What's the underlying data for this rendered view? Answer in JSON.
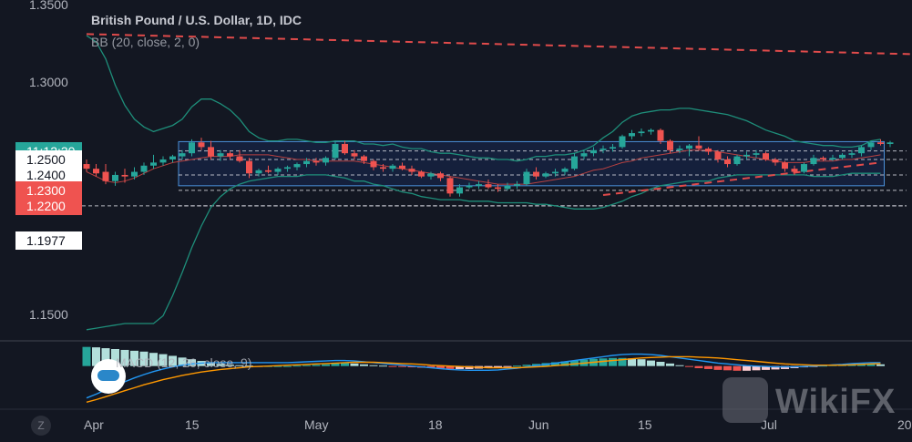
{
  "legend": {
    "title": "British Pound / U.S. Dollar, 1D, IDC",
    "bb": "BB (20, close, 2, 0)",
    "macd": "MACD (12, 26, close, 9)"
  },
  "price_tags": [
    {
      "label": "11:12:30",
      "price": 1.2555,
      "bg": "#26a69a",
      "fg": "#ffffff"
    },
    {
      "label": "1.2500",
      "price": 1.25,
      "bg": "#ffffff",
      "fg": "#131722"
    },
    {
      "label": "1.2400",
      "price": 1.24,
      "bg": "#ffffff",
      "fg": "#131722"
    },
    {
      "label": "1.2300",
      "price": 1.23,
      "bg": "#ef5350",
      "fg": "#ffffff"
    },
    {
      "label": "1.2200",
      "price": 1.22,
      "bg": "#ef5350",
      "fg": "#ffffff"
    },
    {
      "label": "1.1977",
      "price": 1.1977,
      "bg": "#ffffff",
      "fg": "#131722"
    }
  ],
  "bottom_button": "Z",
  "watermark": "WikiFX",
  "colors": {
    "background": "#131722",
    "up": "#26a69a",
    "down": "#ef5350",
    "bb_band": "#1e8e7a",
    "bb_basis": "#b74141",
    "trendline": "#e04b4b",
    "box_fill": "#2962ff",
    "box_border": "#4a90d9",
    "macd_line": "#2196f3",
    "signal_line": "#ff9800",
    "axis_text": "#b2b5be"
  },
  "chart_data": {
    "type": "candlestick",
    "title": "British Pound / U.S. Dollar, 1D, IDC",
    "y_ticks": [
      1.15,
      1.3,
      1.35
    ],
    "y_range": [
      1.134,
      1.353
    ],
    "x_ticks": [
      "Apr",
      "15",
      "May",
      "18",
      "Jun",
      "15",
      "Jul",
      "20"
    ],
    "candles": [
      [
        1.247,
        1.25,
        1.242,
        1.244
      ],
      [
        1.244,
        1.247,
        1.239,
        1.241
      ],
      [
        1.242,
        1.247,
        1.234,
        1.236
      ],
      [
        1.236,
        1.242,
        1.233,
        1.24
      ],
      [
        1.24,
        1.244,
        1.235,
        1.239
      ],
      [
        1.239,
        1.245,
        1.237,
        1.242
      ],
      [
        1.242,
        1.248,
        1.24,
        1.246
      ],
      [
        1.246,
        1.253,
        1.244,
        1.248
      ],
      [
        1.248,
        1.252,
        1.246,
        1.25
      ],
      [
        1.25,
        1.253,
        1.248,
        1.252
      ],
      [
        1.252,
        1.256,
        1.25,
        1.254
      ],
      [
        1.254,
        1.263,
        1.252,
        1.261
      ],
      [
        1.261,
        1.264,
        1.256,
        1.258
      ],
      [
        1.258,
        1.262,
        1.25,
        1.252
      ],
      [
        1.252,
        1.256,
        1.249,
        1.254
      ],
      [
        1.254,
        1.255,
        1.25,
        1.252
      ],
      [
        1.252,
        1.256,
        1.248,
        1.249
      ],
      [
        1.249,
        1.251,
        1.238,
        1.241
      ],
      [
        1.241,
        1.244,
        1.239,
        1.243
      ],
      [
        1.243,
        1.246,
        1.241,
        1.242
      ],
      [
        1.242,
        1.245,
        1.24,
        1.244
      ],
      [
        1.244,
        1.246,
        1.242,
        1.245
      ],
      [
        1.245,
        1.248,
        1.243,
        1.247
      ],
      [
        1.247,
        1.251,
        1.245,
        1.249
      ],
      [
        1.249,
        1.251,
        1.246,
        1.248
      ],
      [
        1.248,
        1.252,
        1.246,
        1.251
      ],
      [
        1.251,
        1.262,
        1.25,
        1.26
      ],
      [
        1.26,
        1.262,
        1.253,
        1.254
      ],
      [
        1.254,
        1.256,
        1.25,
        1.252
      ],
      [
        1.252,
        1.253,
        1.247,
        1.249
      ],
      [
        1.249,
        1.25,
        1.243,
        1.245
      ],
      [
        1.245,
        1.247,
        1.242,
        1.244
      ],
      [
        1.244,
        1.247,
        1.242,
        1.246
      ],
      [
        1.246,
        1.248,
        1.243,
        1.244
      ],
      [
        1.244,
        1.246,
        1.24,
        1.242
      ],
      [
        1.242,
        1.243,
        1.238,
        1.239
      ],
      [
        1.239,
        1.242,
        1.237,
        1.241
      ],
      [
        1.241,
        1.242,
        1.236,
        1.238
      ],
      [
        1.238,
        1.239,
        1.226,
        1.228
      ],
      [
        1.228,
        1.234,
        1.226,
        1.232
      ],
      [
        1.232,
        1.235,
        1.231,
        1.233
      ],
      [
        1.233,
        1.236,
        1.231,
        1.234
      ],
      [
        1.234,
        1.237,
        1.231,
        1.232
      ],
      [
        1.232,
        1.234,
        1.229,
        1.231
      ],
      [
        1.231,
        1.235,
        1.23,
        1.233
      ],
      [
        1.233,
        1.236,
        1.231,
        1.234
      ],
      [
        1.234,
        1.244,
        1.233,
        1.242
      ],
      [
        1.242,
        1.245,
        1.237,
        1.239
      ],
      [
        1.239,
        1.242,
        1.238,
        1.241
      ],
      [
        1.241,
        1.244,
        1.239,
        1.242
      ],
      [
        1.242,
        1.245,
        1.24,
        1.244
      ],
      [
        1.244,
        1.254,
        1.243,
        1.252
      ],
      [
        1.252,
        1.256,
        1.25,
        1.254
      ],
      [
        1.254,
        1.258,
        1.252,
        1.256
      ],
      [
        1.256,
        1.259,
        1.254,
        1.257
      ],
      [
        1.257,
        1.26,
        1.255,
        1.258
      ],
      [
        1.258,
        1.266,
        1.257,
        1.265
      ],
      [
        1.265,
        1.269,
        1.263,
        1.267
      ],
      [
        1.267,
        1.27,
        1.265,
        1.268
      ],
      [
        1.268,
        1.27,
        1.266,
        1.269
      ],
      [
        1.269,
        1.27,
        1.26,
        1.262
      ],
      [
        1.262,
        1.263,
        1.254,
        1.256
      ],
      [
        1.256,
        1.259,
        1.254,
        1.257
      ],
      [
        1.257,
        1.26,
        1.252,
        1.259
      ],
      [
        1.259,
        1.265,
        1.256,
        1.257
      ],
      [
        1.257,
        1.258,
        1.253,
        1.255
      ],
      [
        1.255,
        1.256,
        1.248,
        1.25
      ],
      [
        1.25,
        1.252,
        1.245,
        1.247
      ],
      [
        1.247,
        1.253,
        1.246,
        1.252
      ],
      [
        1.252,
        1.255,
        1.25,
        1.253
      ],
      [
        1.253,
        1.256,
        1.251,
        1.254
      ],
      [
        1.254,
        1.255,
        1.249,
        1.25
      ],
      [
        1.25,
        1.251,
        1.246,
        1.248
      ],
      [
        1.248,
        1.249,
        1.242,
        1.244
      ],
      [
        1.244,
        1.246,
        1.24,
        1.242
      ],
      [
        1.242,
        1.248,
        1.241,
        1.247
      ],
      [
        1.247,
        1.253,
        1.246,
        1.251
      ],
      [
        1.251,
        1.252,
        1.249,
        1.25
      ],
      [
        1.25,
        1.253,
        1.249,
        1.251
      ],
      [
        1.251,
        1.254,
        1.25,
        1.253
      ],
      [
        1.253,
        1.256,
        1.251,
        1.254
      ],
      [
        1.254,
        1.259,
        1.252,
        1.258
      ],
      [
        1.258,
        1.262,
        1.256,
        1.261
      ],
      [
        1.261,
        1.263,
        1.259,
        1.26
      ],
      [
        1.26,
        1.262,
        1.258,
        1.261
      ]
    ],
    "bb_upper": [
      1.33,
      1.326,
      1.315,
      1.298,
      1.285,
      1.276,
      1.271,
      1.268,
      1.27,
      1.272,
      1.276,
      1.284,
      1.289,
      1.289,
      1.286,
      1.282,
      1.276,
      1.268,
      1.264,
      1.262,
      1.262,
      1.263,
      1.263,
      1.262,
      1.261,
      1.261,
      1.262,
      1.262,
      1.262,
      1.26,
      1.26,
      1.259,
      1.26,
      1.258,
      1.257,
      1.257,
      1.255,
      1.254,
      1.254,
      1.253,
      1.252,
      1.251,
      1.251,
      1.25,
      1.25,
      1.249,
      1.25,
      1.252,
      1.252,
      1.253,
      1.253,
      1.254,
      1.256,
      1.259,
      1.264,
      1.268,
      1.274,
      1.278,
      1.28,
      1.281,
      1.282,
      1.282,
      1.283,
      1.283,
      1.282,
      1.281,
      1.28,
      1.279,
      1.277,
      1.275,
      1.272,
      1.269,
      1.267,
      1.265,
      1.262,
      1.261,
      1.26,
      1.259,
      1.259,
      1.258,
      1.258,
      1.259,
      1.262,
      1.263
    ],
    "bb_basis": [
      1.242,
      1.239,
      1.236,
      1.235,
      1.236,
      1.238,
      1.241,
      1.244,
      1.246,
      1.248,
      1.249,
      1.25,
      1.251,
      1.252,
      1.252,
      1.252,
      1.253,
      1.253,
      1.253,
      1.253,
      1.252,
      1.251,
      1.25,
      1.25,
      1.249,
      1.249,
      1.249,
      1.249,
      1.249,
      1.248,
      1.247,
      1.246,
      1.245,
      1.244,
      1.243,
      1.242,
      1.241,
      1.24,
      1.239,
      1.238,
      1.237,
      1.236,
      1.235,
      1.234,
      1.234,
      1.234,
      1.234,
      1.235,
      1.236,
      1.237,
      1.238,
      1.239,
      1.241,
      1.243,
      1.244,
      1.246,
      1.248,
      1.249,
      1.251,
      1.252,
      1.253,
      1.254,
      1.255,
      1.256,
      1.256,
      1.256,
      1.255,
      1.254,
      1.253,
      1.252,
      1.251,
      1.25,
      1.249,
      1.248,
      1.248,
      1.248,
      1.249,
      1.249,
      1.249,
      1.25,
      1.25,
      1.251,
      1.252,
      1.253
    ],
    "bb_lower": [
      1.14,
      1.141,
      1.142,
      1.143,
      1.144,
      1.144,
      1.144,
      1.144,
      1.149,
      1.162,
      1.177,
      1.193,
      1.207,
      1.219,
      1.226,
      1.231,
      1.234,
      1.236,
      1.237,
      1.238,
      1.239,
      1.239,
      1.239,
      1.24,
      1.24,
      1.24,
      1.239,
      1.238,
      1.236,
      1.236,
      1.234,
      1.233,
      1.231,
      1.229,
      1.228,
      1.226,
      1.225,
      1.224,
      1.224,
      1.224,
      1.223,
      1.223,
      1.223,
      1.222,
      1.222,
      1.222,
      1.222,
      1.221,
      1.221,
      1.22,
      1.219,
      1.218,
      1.218,
      1.218,
      1.219,
      1.221,
      1.223,
      1.226,
      1.228,
      1.231,
      1.233,
      1.234,
      1.235,
      1.236,
      1.236,
      1.236,
      1.238,
      1.239,
      1.24,
      1.24,
      1.24,
      1.24,
      1.24,
      1.24,
      1.24,
      1.24,
      1.239,
      1.239,
      1.239,
      1.24,
      1.241,
      1.241,
      1.241,
      1.241
    ],
    "h_lines": [
      1.2555,
      1.25,
      1.24,
      1.23,
      1.22
    ],
    "range_box": {
      "from_index": 10,
      "to_index": 83,
      "high": 1.2615,
      "low": 1.233
    },
    "trend_upper": [
      [
        0,
        1.331
      ],
      [
        133,
        1.311
      ]
    ],
    "trend_lower": [
      [
        54,
        1.227
      ],
      [
        83,
        1.248
      ]
    ],
    "macd": {
      "title": "MACD (12, 26, close, 9)",
      "histogram": [
        0.0045,
        0.0044,
        0.0042,
        0.004,
        0.0038,
        0.0036,
        0.0034,
        0.0031,
        0.0028,
        0.0024,
        0.002,
        0.0016,
        0.0012,
        0.0008,
        0.0005,
        0.0003,
        0.0002,
        0.0001,
        0.0,
        0.0,
        0.0,
        0.0,
        0.0001,
        0.0002,
        0.0003,
        0.0004,
        0.0006,
        0.0007,
        0.0006,
        0.0004,
        0.0002,
        0.0001,
        -0.0001,
        -0.0002,
        -0.0003,
        -0.0004,
        -0.0005,
        -0.0006,
        -0.0007,
        -0.0007,
        -0.0007,
        -0.0006,
        -0.0005,
        -0.0003,
        -0.0001,
        0.0001,
        0.0003,
        0.0005,
        0.0007,
        0.0009,
        0.0011,
        0.0013,
        0.0015,
        0.0017,
        0.0018,
        0.0019,
        0.0019,
        0.0018,
        0.0016,
        0.0013,
        0.001,
        0.0006,
        0.0002,
        -0.0002,
        -0.0005,
        -0.0007,
        -0.0009,
        -0.001,
        -0.0011,
        -0.0011,
        -0.001,
        -0.0009,
        -0.0008,
        -0.0007,
        -0.0005,
        -0.0003,
        -0.0001,
        0.0001,
        0.0002,
        0.0003,
        0.0004,
        0.0005,
        0.0005,
        0.0004
      ],
      "macd_line": [
        -0.0075,
        -0.0066,
        -0.0056,
        -0.0046,
        -0.0037,
        -0.0028,
        -0.002,
        -0.0013,
        -0.0007,
        -0.0002,
        0.0002,
        0.0005,
        0.0007,
        0.0008,
        0.0008,
        0.0008,
        0.0008,
        0.0008,
        0.0008,
        0.0008,
        0.0008,
        0.0008,
        0.0009,
        0.001,
        0.0011,
        0.0012,
        0.0013,
        0.0013,
        0.0012,
        0.001,
        0.0008,
        0.0006,
        0.0004,
        0.0002,
        0.0,
        -0.0002,
        -0.0004,
        -0.0006,
        -0.0008,
        -0.0009,
        -0.001,
        -0.001,
        -0.001,
        -0.0009,
        -0.0007,
        -0.0005,
        -0.0002,
        0.0001,
        0.0004,
        0.0007,
        0.001,
        0.0013,
        0.0016,
        0.0019,
        0.0022,
        0.0025,
        0.0027,
        0.0028,
        0.0028,
        0.0027,
        0.0025,
        0.0022,
        0.0019,
        0.0016,
        0.0013,
        0.001,
        0.0007,
        0.0005,
        0.0003,
        0.0001,
        0.0,
        -0.0001,
        -0.0002,
        -0.0002,
        -0.0002,
        -0.0001,
        0.0,
        0.0001,
        0.0003,
        0.0004,
        0.0006,
        0.0007,
        0.0008,
        0.0008
      ],
      "signal_line": [
        -0.0085,
        -0.0079,
        -0.0072,
        -0.0065,
        -0.0058,
        -0.0051,
        -0.0044,
        -0.0038,
        -0.0032,
        -0.0027,
        -0.0022,
        -0.0018,
        -0.0014,
        -0.0011,
        -0.0008,
        -0.0006,
        -0.0004,
        -0.0002,
        -0.0001,
        0.0,
        0.0001,
        0.0002,
        0.0003,
        0.0004,
        0.0005,
        0.0006,
        0.0007,
        0.0008,
        0.0009,
        0.0009,
        0.0009,
        0.0008,
        0.0007,
        0.0006,
        0.0005,
        0.0004,
        0.0002,
        0.0001,
        0.0,
        -0.0001,
        -0.0002,
        -0.0003,
        -0.0004,
        -0.0004,
        -0.0004,
        -0.0004,
        -0.0003,
        -0.0002,
        -0.0001,
        0.0001,
        0.0003,
        0.0005,
        0.0007,
        0.0009,
        0.0011,
        0.0013,
        0.0015,
        0.0017,
        0.0019,
        0.002,
        0.0021,
        0.0022,
        0.0022,
        0.0022,
        0.0021,
        0.002,
        0.0019,
        0.0017,
        0.0015,
        0.0013,
        0.0011,
        0.0009,
        0.0007,
        0.0005,
        0.0004,
        0.0003,
        0.0002,
        0.0002,
        0.0002,
        0.0002,
        0.0003,
        0.0004,
        0.0005,
        0.0006
      ],
      "range": [
        -0.0095,
        0.0055
      ]
    }
  }
}
